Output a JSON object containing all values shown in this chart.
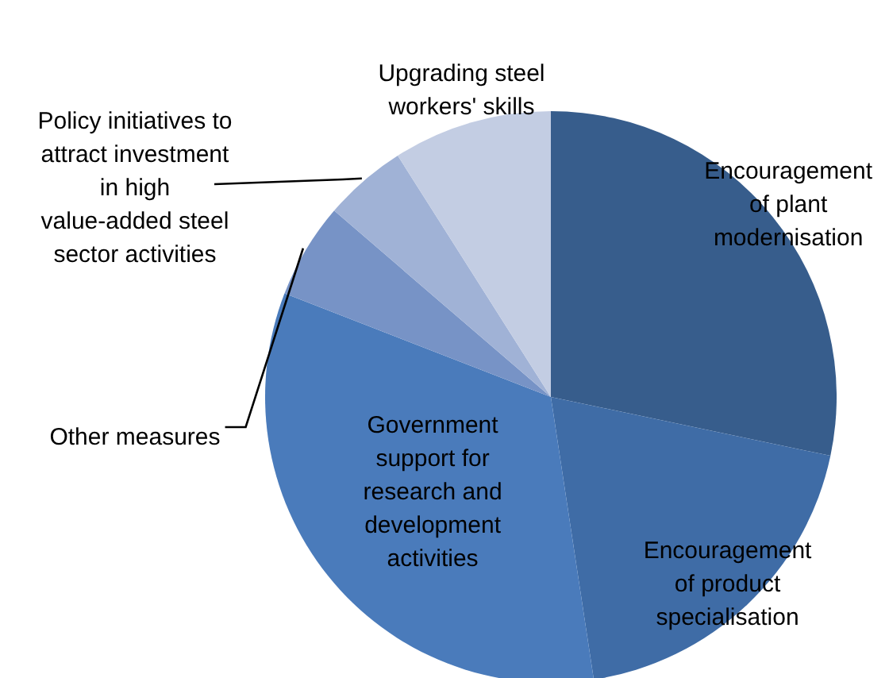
{
  "chart_data": {
    "type": "pie",
    "categories": [
      "Encouragement of plant modernisation",
      "Encouragement of product specialisation",
      "Government support for research and development activities",
      "Other measures",
      "Policy initiatives to attract investment in high value-added steel sector activities",
      "Upgrading steel workers' skills"
    ],
    "values": [
      28.3,
      19.3,
      33.3,
      5.4,
      4.7,
      9.0
    ],
    "colors": [
      "#375d8c",
      "#3f6ca6",
      "#4a7bbb",
      "#7793c6",
      "#a0b2d6",
      "#c3cde3"
    ]
  }
}
